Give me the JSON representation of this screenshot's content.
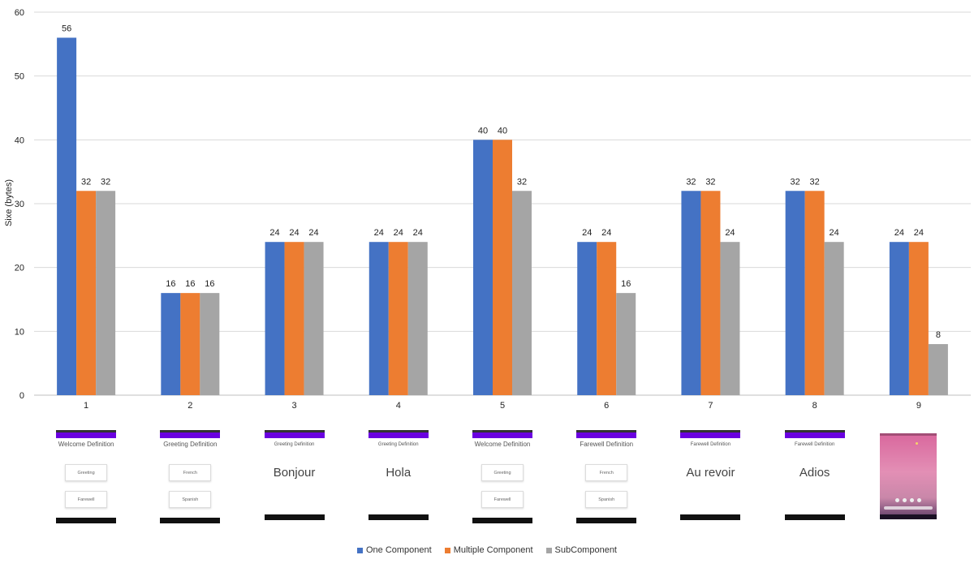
{
  "chart_data": {
    "type": "bar",
    "categories": [
      "1",
      "2",
      "3",
      "4",
      "5",
      "6",
      "7",
      "8",
      "9"
    ],
    "ylabel": "Sixe (bytes)",
    "xlabel": "",
    "ylim": [
      0,
      60
    ],
    "yticks": [
      "0",
      "10",
      "20",
      "30",
      "40",
      "50",
      "60"
    ],
    "grid": true,
    "legend_position": "bottom",
    "series": [
      {
        "name": "One Component",
        "color": "#4472c4",
        "values": [
          56,
          16,
          24,
          24,
          40,
          24,
          32,
          32,
          24
        ],
        "labels": [
          "56",
          "16",
          "24",
          "24",
          "40",
          "24",
          "32",
          "32",
          "24"
        ]
      },
      {
        "name": "Multiple Component",
        "color": "#ed7d31",
        "values": [
          32,
          16,
          24,
          24,
          40,
          24,
          32,
          32,
          24
        ],
        "labels": [
          "32",
          "16",
          "24",
          "24",
          "40",
          "24",
          "32",
          "32",
          "24"
        ]
      },
      {
        "name": "SubComponent",
        "color": "#a5a5a5",
        "values": [
          32,
          16,
          24,
          24,
          32,
          16,
          24,
          24,
          8
        ],
        "labels": [
          "32",
          "16",
          "24",
          "24",
          "32",
          "16",
          "24",
          "24",
          "8"
        ]
      }
    ]
  },
  "thumbnails": [
    {
      "title": "Welcome Definition",
      "buttons": [
        "Greeting",
        "Farewell"
      ]
    },
    {
      "title": "Greeting Definition",
      "buttons": [
        "French",
        "Spanish"
      ]
    },
    {
      "title": "Greeting Definition",
      "word": "Bonjour"
    },
    {
      "title": "Greeting Definition",
      "word": "Hola"
    },
    {
      "title": "Welcome Definition",
      "buttons": [
        "Greeting",
        "Farewell"
      ]
    },
    {
      "title": "Farewell Definition",
      "buttons": [
        "French",
        "Spanish"
      ]
    },
    {
      "title": "Farewell Definition",
      "word": "Au revoir"
    },
    {
      "title": "Farewell Definition",
      "word": "Adios"
    }
  ]
}
